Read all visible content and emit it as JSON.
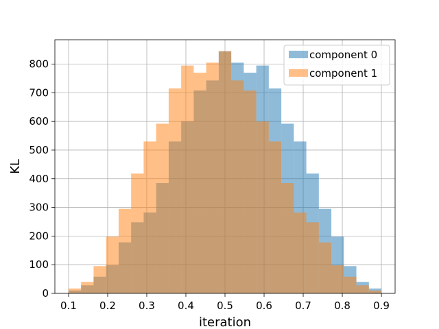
{
  "chart_data": {
    "type": "histogram",
    "title": "",
    "xlabel": "iteration",
    "ylabel": "KL",
    "xlim": [
      0.065,
      0.935
    ],
    "ylim": [
      0,
      885
    ],
    "xticks": [
      "0.1",
      "0.2",
      "0.3",
      "0.4",
      "0.5",
      "0.6",
      "0.7",
      "0.8",
      "0.9"
    ],
    "yticks": [
      "0",
      "100",
      "200",
      "300",
      "400",
      "500",
      "600",
      "700",
      "800"
    ],
    "grid": true,
    "legend_position": "top-right",
    "series": [
      {
        "name": "component 0",
        "color": "#1f77b4",
        "opacity": 0.5,
        "bin_edges": [
          0.1,
          0.132,
          0.164,
          0.196,
          0.228,
          0.26,
          0.292,
          0.324,
          0.356,
          0.388,
          0.42,
          0.452,
          0.484,
          0.516,
          0.548,
          0.58,
          0.612,
          0.644,
          0.676,
          0.708,
          0.74,
          0.772,
          0.804,
          0.836,
          0.868,
          0.9
        ],
        "counts": [
          10,
          28,
          58,
          98,
          178,
          248,
          282,
          385,
          530,
          600,
          708,
          743,
          845,
          805,
          770,
          795,
          715,
          592,
          530,
          418,
          295,
          198,
          95,
          40,
          17
        ]
      },
      {
        "name": "component 1",
        "color": "#ff7f0e",
        "opacity": 0.5,
        "bin_edges": [
          0.1,
          0.132,
          0.164,
          0.196,
          0.228,
          0.26,
          0.292,
          0.324,
          0.356,
          0.388,
          0.42,
          0.452,
          0.484,
          0.516,
          0.548,
          0.58,
          0.612,
          0.644,
          0.676,
          0.708,
          0.74,
          0.772,
          0.804,
          0.836,
          0.868,
          0.9
        ],
        "counts": [
          17,
          40,
          95,
          198,
          295,
          418,
          530,
          592,
          715,
          795,
          770,
          805,
          845,
          743,
          708,
          600,
          530,
          385,
          282,
          248,
          178,
          98,
          58,
          28,
          10
        ]
      }
    ]
  }
}
